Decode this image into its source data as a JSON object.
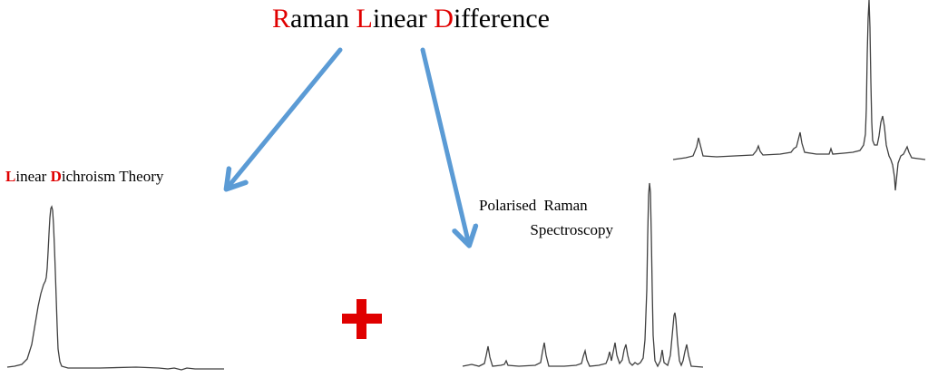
{
  "title": {
    "parts": [
      {
        "cap": "R",
        "rest": "aman "
      },
      {
        "cap": "L",
        "rest": "inear "
      },
      {
        "cap": "D",
        "rest": "ifference"
      }
    ]
  },
  "left_label": {
    "parts": [
      {
        "cap": "L",
        "rest": "inear "
      },
      {
        "cap": "D",
        "rest": "ichroism Theory"
      }
    ]
  },
  "right_label": {
    "line1": "Polarised Raman",
    "line2": "Spectroscopy"
  },
  "plus_symbol": "+",
  "colors": {
    "accent_red": "#e00000",
    "arrow_blue": "#5b9bd5",
    "trace": "#404040"
  }
}
